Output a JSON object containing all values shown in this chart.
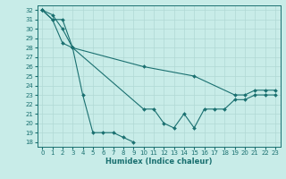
{
  "xlabel": "Humidex (Indice chaleur)",
  "bg_color": "#c8ece8",
  "grid_color": "#b0d8d4",
  "line_color": "#1a7070",
  "xlim": [
    -0.5,
    23.5
  ],
  "ylim": [
    17.5,
    32.5
  ],
  "xticks": [
    0,
    1,
    2,
    3,
    4,
    5,
    6,
    7,
    8,
    9,
    10,
    11,
    12,
    13,
    14,
    15,
    16,
    17,
    18,
    19,
    20,
    21,
    22,
    23
  ],
  "yticks": [
    18,
    19,
    20,
    21,
    22,
    23,
    24,
    25,
    26,
    27,
    28,
    29,
    30,
    31,
    32
  ],
  "line1_x": [
    0,
    1,
    2,
    3,
    4,
    5,
    6,
    7,
    8,
    9
  ],
  "line1_y": [
    32,
    31,
    31,
    28,
    23,
    19,
    19,
    19,
    18.5,
    18
  ],
  "line2_x": [
    0,
    1,
    2,
    3,
    10,
    11,
    12,
    13,
    14,
    15,
    16,
    17,
    18,
    19,
    20,
    21,
    22,
    23
  ],
  "line2_y": [
    32,
    31,
    28.5,
    28,
    21.5,
    21.5,
    20,
    19.5,
    21,
    19.5,
    21.5,
    21.5,
    21.5,
    22.5,
    22.5,
    23,
    23,
    23
  ],
  "line3_x": [
    0,
    1,
    2,
    3,
    10,
    15,
    19,
    20,
    21,
    22,
    23
  ],
  "line3_y": [
    32,
    31.5,
    30,
    28,
    26,
    25,
    23,
    23,
    23.5,
    23.5,
    23.5
  ],
  "xlabel_fontsize": 6,
  "tick_fontsize": 5,
  "linewidth": 0.8,
  "markersize": 2.0
}
